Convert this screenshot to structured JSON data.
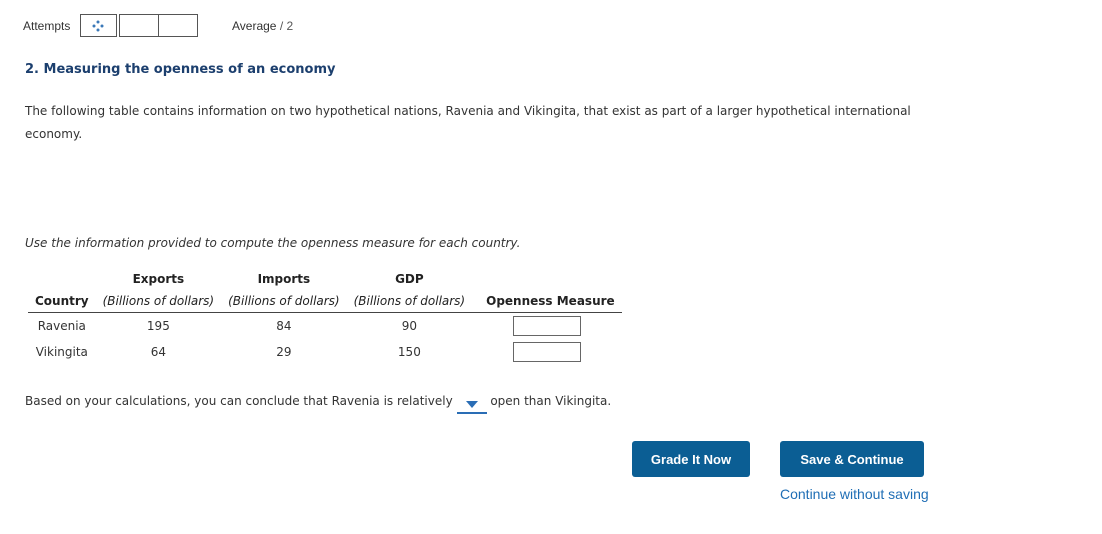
{
  "header": {
    "attempts_label": "Attempts",
    "average_label": "Average",
    "average_total": "/ 2"
  },
  "question": {
    "title": "2. Measuring the openness of an economy",
    "intro": "The following table contains information on two hypothetical nations, Ravenia and Vikingita, that exist as part of a larger hypothetical international economy.",
    "instruction": "Use the information provided to compute the openness measure for each country."
  },
  "table": {
    "columns": [
      {
        "label": "Country"
      },
      {
        "label": "Exports",
        "unit": "(Billions of dollars)"
      },
      {
        "label": "Imports",
        "unit": "(Billions of dollars)"
      },
      {
        "label": "GDP",
        "unit": "(Billions of dollars)"
      },
      {
        "label": "Openness Measure"
      }
    ],
    "rows": [
      [
        "Ravenia",
        195,
        84,
        90
      ],
      [
        "Vikingita",
        64,
        29,
        150
      ]
    ]
  },
  "conclusion": {
    "before": "Based on your calculations, you can conclude that Ravenia is relatively",
    "after": "open than Vikingita."
  },
  "buttons": {
    "grade": "Grade It Now",
    "save": "Save & Continue",
    "continue_link": "Continue without saving"
  }
}
